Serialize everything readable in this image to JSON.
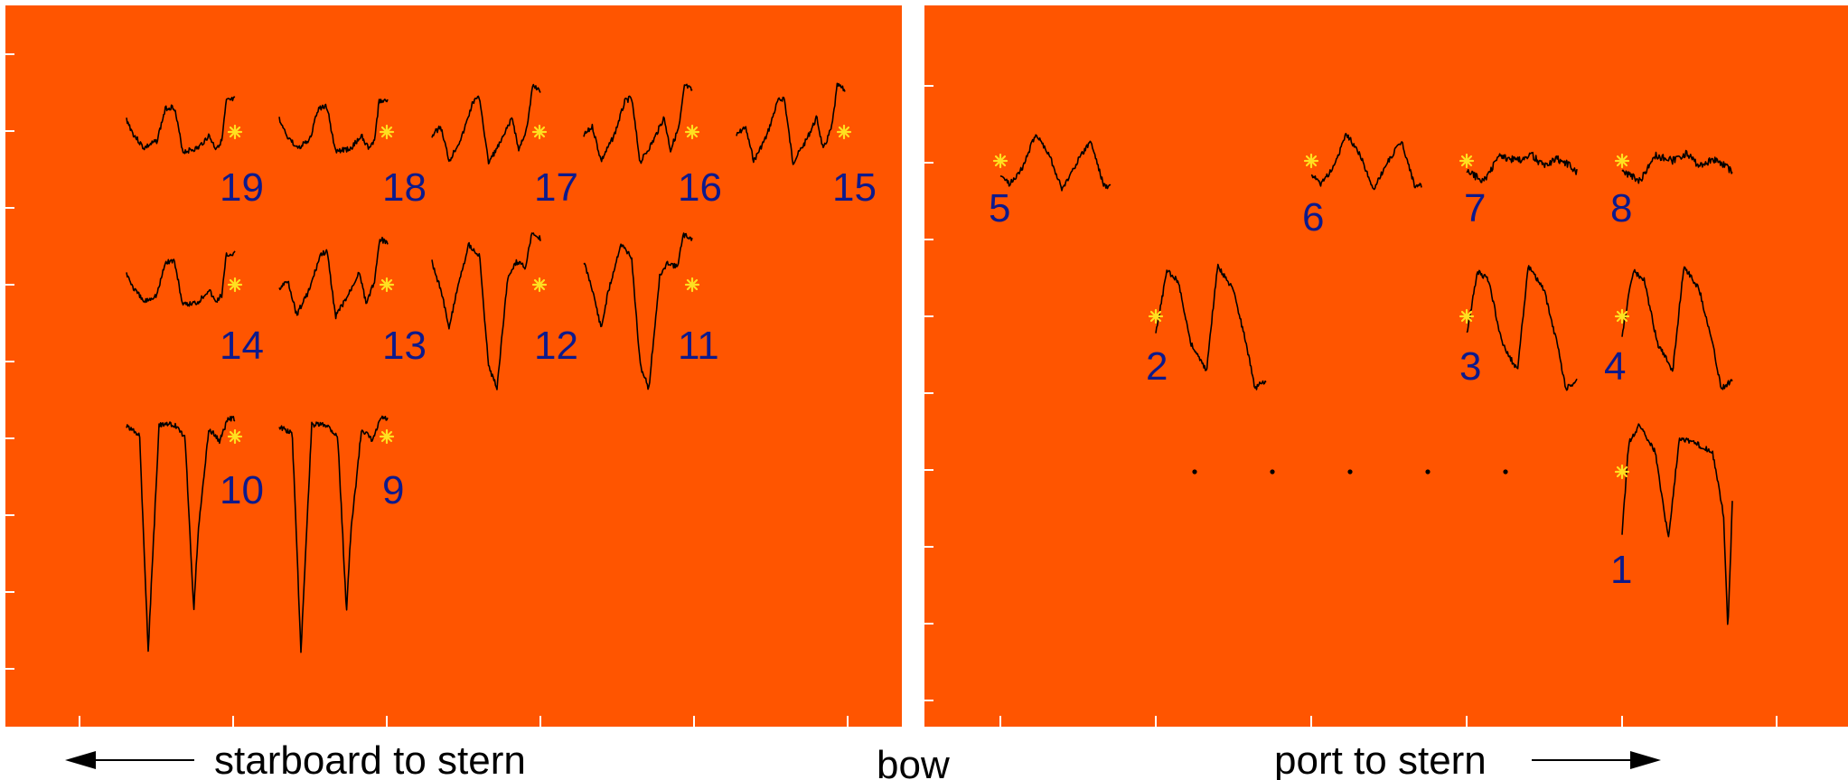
{
  "colors": {
    "panel_background": "#ff5500",
    "page_background": "#ffffff",
    "trace": "#000000",
    "marker": "#ffe020",
    "label": "#0d1a8c"
  },
  "captions": {
    "left": "starboard to stern",
    "center": "bow",
    "right": "port to stern"
  },
  "panels": {
    "left": {
      "sensors": [
        {
          "id": 19,
          "label": "19"
        },
        {
          "id": 18,
          "label": "18"
        },
        {
          "id": 17,
          "label": "17"
        },
        {
          "id": 16,
          "label": "16"
        },
        {
          "id": 15,
          "label": "15"
        },
        {
          "id": 14,
          "label": "14"
        },
        {
          "id": 13,
          "label": "13"
        },
        {
          "id": 12,
          "label": "12"
        },
        {
          "id": 11,
          "label": "11"
        },
        {
          "id": 10,
          "label": "10"
        },
        {
          "id": 9,
          "label": "9"
        }
      ]
    },
    "right": {
      "sensors": [
        {
          "id": 5,
          "label": "5"
        },
        {
          "id": 6,
          "label": "6"
        },
        {
          "id": 7,
          "label": "7"
        },
        {
          "id": 8,
          "label": "8"
        },
        {
          "id": 2,
          "label": "2"
        },
        {
          "id": 3,
          "label": "3"
        },
        {
          "id": 4,
          "label": "4"
        },
        {
          "id": 1,
          "label": "1"
        }
      ],
      "spacer_dots": 5
    }
  }
}
